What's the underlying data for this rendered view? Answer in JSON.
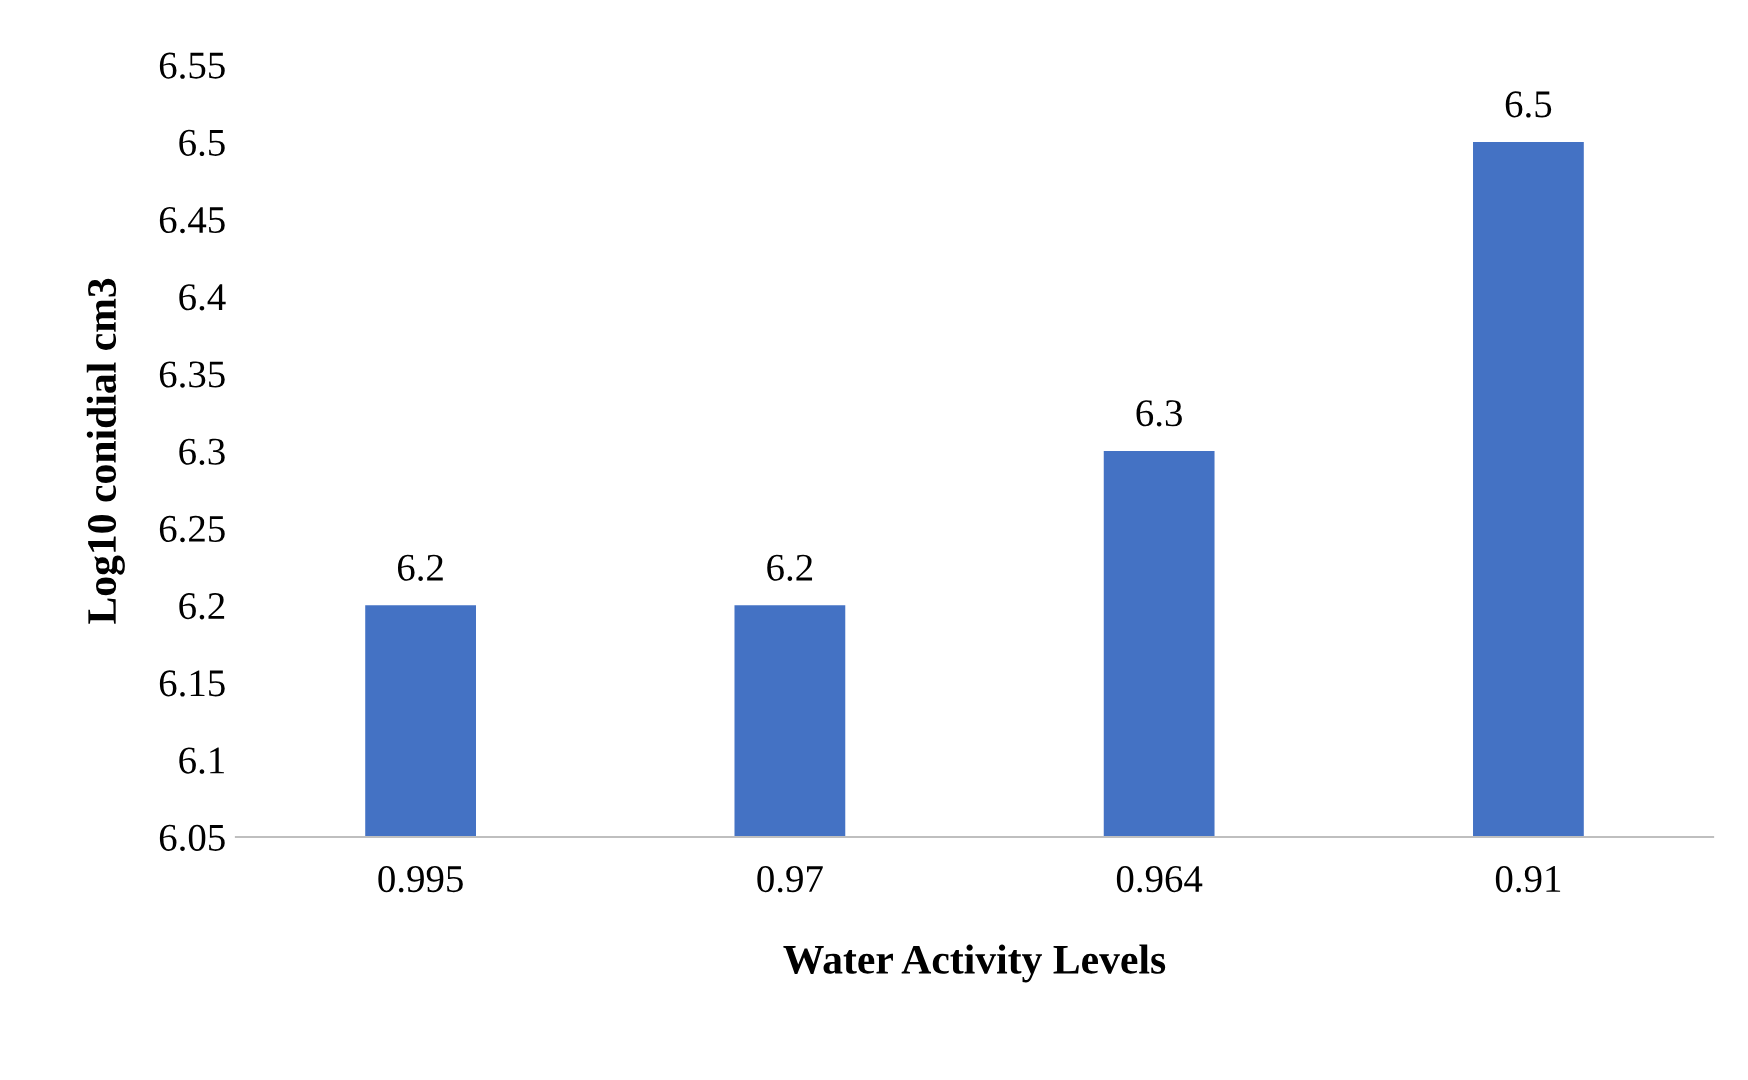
{
  "chart_data": {
    "type": "bar",
    "xlabel": "Water Activity Levels",
    "ylabel": "Log10 conidial cm3",
    "categories": [
      "0.995",
      "0.97",
      "0.964",
      "0.91"
    ],
    "values": [
      6.2,
      6.2,
      6.3,
      6.5
    ],
    "color": "#4472c4",
    "ylim": [
      6.05,
      6.55
    ],
    "yticks": [
      6.05,
      6.1,
      6.15,
      6.2,
      6.25,
      6.3,
      6.35,
      6.4,
      6.45,
      6.5,
      6.55
    ],
    "grid": false,
    "data_labels": true
  }
}
